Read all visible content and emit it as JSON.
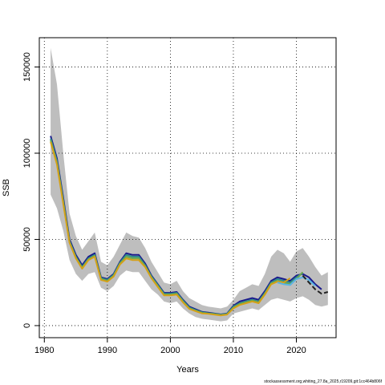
{
  "chart_data": {
    "type": "line",
    "title": "",
    "xlabel": "Years",
    "ylabel": "SSB",
    "xlim": [
      1979.2,
      2026.3
    ],
    "ylim": [
      -7000,
      167000
    ],
    "x_ticks": [
      1980,
      1990,
      2000,
      2010,
      2020
    ],
    "y_ticks": [
      0,
      50000,
      100000,
      150000
    ],
    "x_tick_labels": [
      "1980",
      "1990",
      "2000",
      "2010",
      "2020"
    ],
    "y_tick_labels": [
      "0",
      "50000",
      "100000",
      "150000"
    ],
    "grid": true,
    "legend": "none",
    "band": {
      "color": "#bebebe",
      "x": [
        1981,
        1982,
        1983,
        1984,
        1985,
        1986,
        1987,
        1988,
        1989,
        1990,
        1991,
        1992,
        1993,
        1994,
        1995,
        1996,
        1997,
        1998,
        1999,
        2000,
        2001,
        2002,
        2003,
        2004,
        2005,
        2006,
        2007,
        2008,
        2009,
        2010,
        2011,
        2012,
        2013,
        2014,
        2015,
        2016,
        2017,
        2018,
        2019,
        2020,
        2021,
        2022,
        2023,
        2024,
        2025
      ],
      "upper": [
        161000,
        140000,
        100000,
        65000,
        52000,
        44000,
        49000,
        54000,
        37000,
        35000,
        40000,
        47000,
        54000,
        52000,
        51000,
        45000,
        37000,
        31000,
        25000,
        24000,
        26000,
        20000,
        16000,
        14000,
        12000,
        11000,
        10500,
        10000,
        11000,
        15000,
        20000,
        22000,
        24000,
        23000,
        30000,
        40000,
        44000,
        42000,
        37000,
        43000,
        45000,
        40000,
        34000,
        29000,
        31000
      ],
      "lower": [
        76000,
        68000,
        55000,
        38000,
        30000,
        26000,
        30000,
        31000,
        22000,
        20000,
        23000,
        29000,
        32000,
        31000,
        31000,
        26000,
        21000,
        18000,
        14000,
        13000,
        14000,
        10000,
        7000,
        5000,
        4000,
        3500,
        3000,
        2500,
        3000,
        7000,
        8000,
        9000,
        10000,
        9000,
        12000,
        15000,
        16000,
        15000,
        14000,
        16000,
        17000,
        15000,
        12000,
        11000,
        12000
      ]
    },
    "series": [
      {
        "color": "#1a1a8c",
        "x": [
          1981,
          1982,
          1983,
          1984,
          1985,
          1986,
          1987,
          1988,
          1989,
          1990,
          1991,
          1992,
          1993,
          1994,
          1995,
          1996,
          1997,
          1998,
          1999,
          2000,
          2001,
          2002,
          2003,
          2004,
          2005,
          2006,
          2007,
          2008,
          2009,
          2010,
          2011,
          2012,
          2013,
          2014,
          2015,
          2016,
          2017,
          2018,
          2019,
          2020,
          2021,
          2022,
          2023,
          2024
        ],
        "y": [
          110000,
          97000,
          74000,
          50000,
          41000,
          35000,
          40000,
          42000,
          28000,
          27000,
          30000,
          37000,
          42000,
          41000,
          41000,
          36000,
          29000,
          24000,
          19000,
          19000,
          19500,
          15000,
          11000,
          9500,
          8000,
          7500,
          7000,
          6500,
          7000,
          11500,
          14000,
          15000,
          16000,
          15000,
          20000,
          26000,
          28000,
          27000,
          26000,
          29000,
          30000,
          28000,
          24000,
          21000
        ]
      },
      {
        "color": "#2e8b8b",
        "x": [
          1981,
          1982,
          1983,
          1984,
          1985,
          1986,
          1987,
          1988,
          1989,
          1990,
          1991,
          1992,
          1993,
          1994,
          1995,
          1996,
          1997,
          1998,
          1999,
          2000,
          2001,
          2002,
          2003,
          2004,
          2005,
          2006,
          2007,
          2008,
          2009,
          2010,
          2011,
          2012,
          2013,
          2014,
          2015,
          2016,
          2017,
          2018,
          2019,
          2020,
          2021
        ],
        "y": [
          108500,
          95500,
          72500,
          49000,
          40000,
          34000,
          39000,
          41000,
          27500,
          26500,
          29500,
          36500,
          41000,
          40000,
          40000,
          35000,
          28500,
          23500,
          18500,
          18500,
          19000,
          14500,
          10500,
          9000,
          7700,
          7200,
          6800,
          6300,
          6800,
          11000,
          13000,
          14000,
          15000,
          14000,
          19000,
          25000,
          27000,
          26000,
          25000,
          28000,
          30500
        ]
      },
      {
        "color": "#6aa84f",
        "x": [
          1981,
          1982,
          1983,
          1984,
          1985,
          1986,
          1987,
          1988,
          1989,
          1990,
          1991,
          1992,
          1993,
          1994,
          1995,
          1996,
          1997,
          1998,
          1999,
          2000,
          2001,
          2002,
          2003,
          2004,
          2005,
          2006,
          2007,
          2008,
          2009,
          2010,
          2011,
          2012,
          2013,
          2014,
          2015,
          2016,
          2017,
          2018,
          2019,
          2020,
          2021
        ],
        "y": [
          107500,
          94500,
          71500,
          48500,
          39500,
          33500,
          38500,
          40500,
          27000,
          26000,
          29000,
          36000,
          40000,
          39000,
          39000,
          34500,
          28000,
          23000,
          18000,
          18000,
          18500,
          14000,
          10000,
          8700,
          7400,
          7000,
          6600,
          6100,
          6600,
          10500,
          12500,
          13500,
          14500,
          13500,
          18500,
          24500,
          26000,
          25000,
          24000,
          27000,
          31000
        ]
      },
      {
        "color": "#d4a017",
        "x": [
          1981,
          1982,
          1983,
          1984,
          1985,
          1986,
          1987,
          1988,
          1989,
          1990,
          1991,
          1992,
          1993,
          1994,
          1995,
          1996,
          1997,
          1998,
          1999,
          2000,
          2001,
          2002,
          2003,
          2004,
          2005,
          2006,
          2007,
          2008,
          2009,
          2010,
          2011,
          2012,
          2013,
          2014,
          2015,
          2016,
          2017,
          2018,
          2019
        ],
        "y": [
          106500,
          93500,
          70500,
          48000,
          39000,
          33000,
          38000,
          40000,
          26500,
          25500,
          28500,
          35500,
          39000,
          38000,
          38000,
          34000,
          27500,
          22500,
          17500,
          17500,
          18000,
          13500,
          9700,
          8400,
          7100,
          6800,
          6400,
          5900,
          6400,
          10000,
          12000,
          13000,
          14000,
          13000,
          18000,
          24000,
          25500,
          25000,
          27500
        ]
      },
      {
        "color": "#5ab4e5",
        "x": [
          2017,
          2018,
          2019,
          2020,
          2021,
          2022,
          2023
        ],
        "y": [
          25000,
          24000,
          23500,
          27000,
          28000,
          26500,
          23000
        ]
      },
      {
        "color": "#222222",
        "dashed": true,
        "x": [
          2021,
          2022,
          2023,
          2024,
          2025
        ],
        "y": [
          29000,
          25000,
          21000,
          18500,
          19500
        ]
      }
    ]
  },
  "footnote": "stockassessment.org,whiting_27.8a_2025,r19209,git:1cc464b806f"
}
